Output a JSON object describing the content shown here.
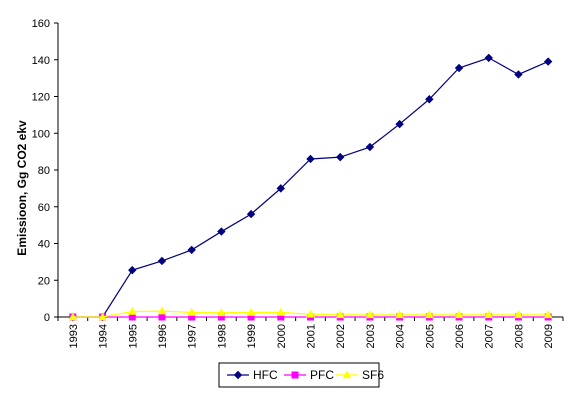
{
  "chart_data": {
    "type": "line",
    "title": "",
    "xlabel": "",
    "ylabel": "Emissioon, Gg CO2 ekv",
    "ylim": [
      0,
      160
    ],
    "yticks": [
      0,
      20,
      40,
      60,
      80,
      100,
      120,
      140,
      160
    ],
    "grid": false,
    "legend_position": "bottom",
    "categories": [
      "1993",
      "1994",
      "1995",
      "1996",
      "1997",
      "1998",
      "1999",
      "2000",
      "2001",
      "2002",
      "2003",
      "2004",
      "2005",
      "2006",
      "2007",
      "2008",
      "2009"
    ],
    "series": [
      {
        "name": "HFC",
        "color": "#000080",
        "marker": "diamond",
        "values": [
          0,
          0,
          25.5,
          30.5,
          36.5,
          46.5,
          56,
          70,
          86,
          87,
          92.5,
          105,
          118.5,
          135.5,
          141,
          132,
          139
        ]
      },
      {
        "name": "PFC",
        "color": "#ff00ff",
        "marker": "square",
        "values": [
          0,
          0,
          0,
          0,
          0,
          0,
          0,
          0,
          0,
          0,
          0,
          0,
          0,
          0,
          0,
          0,
          0
        ]
      },
      {
        "name": "SF6",
        "color": "#ffff00",
        "marker": "triangle",
        "values": [
          0,
          0,
          3,
          3.2,
          2.5,
          2.3,
          2.5,
          2.5,
          1.5,
          1.2,
          1.2,
          1.2,
          1.2,
          1.2,
          1.2,
          1.2,
          1.2
        ]
      }
    ]
  }
}
